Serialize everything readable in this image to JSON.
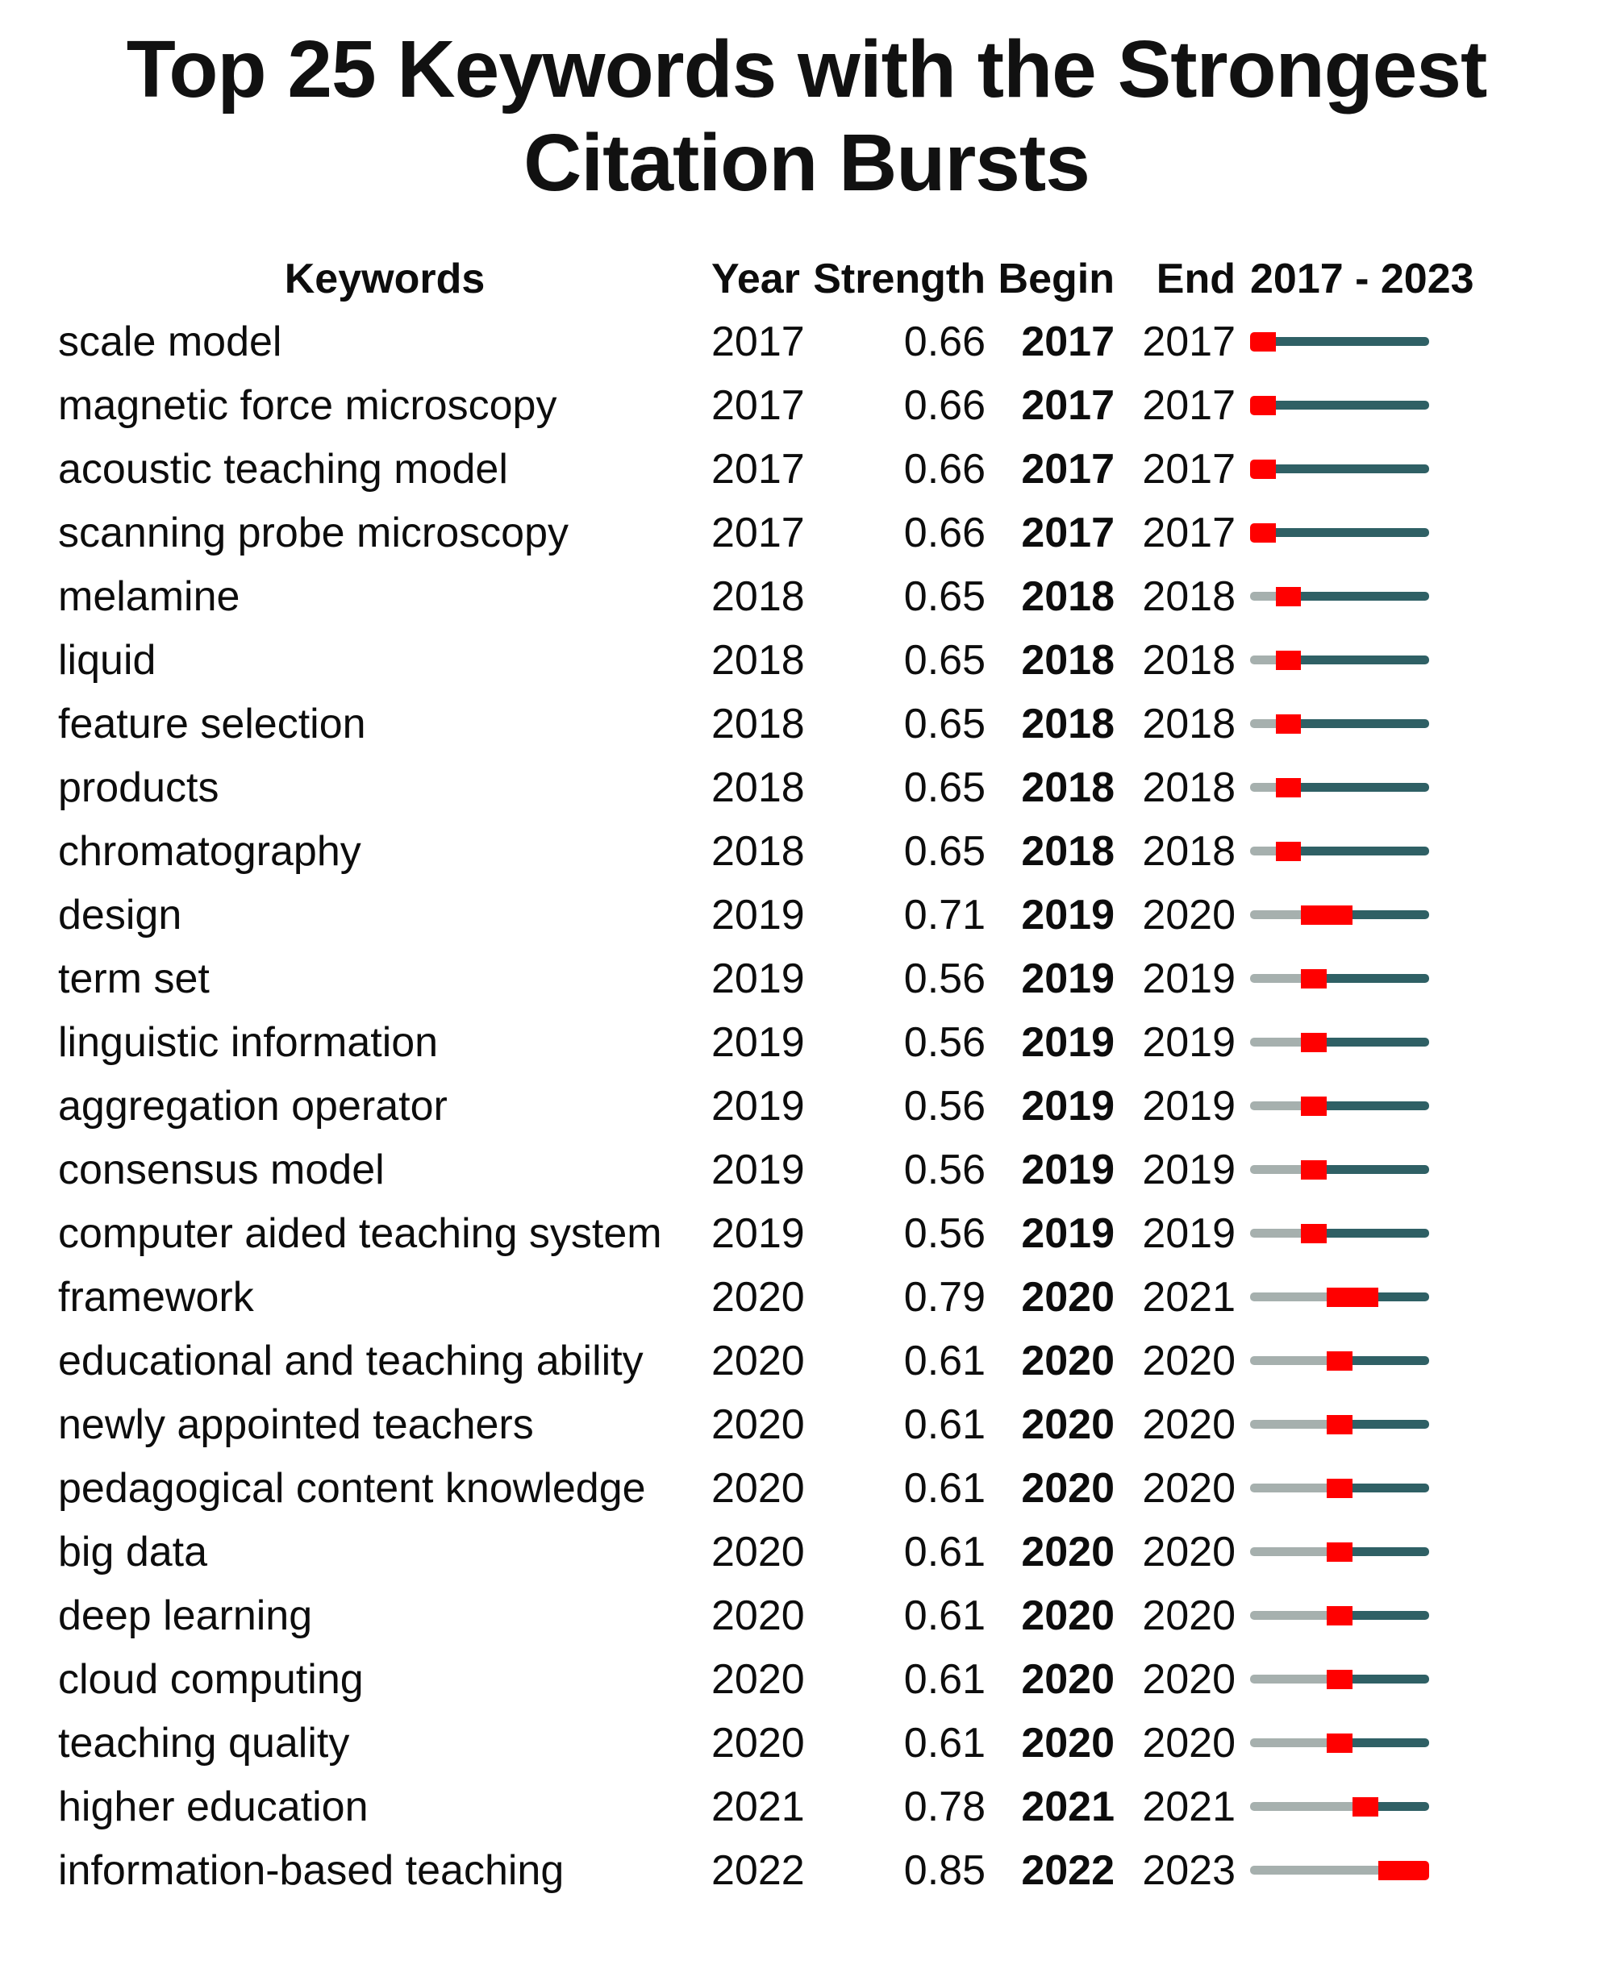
{
  "title": "Top 25 Keywords with the Strongest Citation Bursts",
  "colors": {
    "burst_red": "#ff0000",
    "pre_burst_gray": "#a6b0ae",
    "post_burst_teal": "#2f6065"
  },
  "chart_data": {
    "type": "table",
    "title": "Top 25 Keywords with the Strongest Citation Bursts",
    "columns": [
      "Keywords",
      "Year",
      "Strength",
      "Begin",
      "End",
      "2017 - 2023"
    ],
    "timeline_range": [
      2017,
      2023
    ],
    "rows": [
      {
        "keyword": "scale model",
        "year": 2017,
        "strength": 0.66,
        "begin": 2017,
        "end": 2017
      },
      {
        "keyword": "magnetic force microscopy",
        "year": 2017,
        "strength": 0.66,
        "begin": 2017,
        "end": 2017
      },
      {
        "keyword": "acoustic teaching model",
        "year": 2017,
        "strength": 0.66,
        "begin": 2017,
        "end": 2017
      },
      {
        "keyword": "scanning probe microscopy",
        "year": 2017,
        "strength": 0.66,
        "begin": 2017,
        "end": 2017
      },
      {
        "keyword": "melamine",
        "year": 2018,
        "strength": 0.65,
        "begin": 2018,
        "end": 2018
      },
      {
        "keyword": "liquid",
        "year": 2018,
        "strength": 0.65,
        "begin": 2018,
        "end": 2018
      },
      {
        "keyword": "feature selection",
        "year": 2018,
        "strength": 0.65,
        "begin": 2018,
        "end": 2018
      },
      {
        "keyword": "products",
        "year": 2018,
        "strength": 0.65,
        "begin": 2018,
        "end": 2018
      },
      {
        "keyword": "chromatography",
        "year": 2018,
        "strength": 0.65,
        "begin": 2018,
        "end": 2018
      },
      {
        "keyword": "design",
        "year": 2019,
        "strength": 0.71,
        "begin": 2019,
        "end": 2020
      },
      {
        "keyword": "term set",
        "year": 2019,
        "strength": 0.56,
        "begin": 2019,
        "end": 2019
      },
      {
        "keyword": "linguistic information",
        "year": 2019,
        "strength": 0.56,
        "begin": 2019,
        "end": 2019
      },
      {
        "keyword": "aggregation operator",
        "year": 2019,
        "strength": 0.56,
        "begin": 2019,
        "end": 2019
      },
      {
        "keyword": "consensus model",
        "year": 2019,
        "strength": 0.56,
        "begin": 2019,
        "end": 2019
      },
      {
        "keyword": "computer aided teaching system",
        "year": 2019,
        "strength": 0.56,
        "begin": 2019,
        "end": 2019
      },
      {
        "keyword": "framework",
        "year": 2020,
        "strength": 0.79,
        "begin": 2020,
        "end": 2021
      },
      {
        "keyword": "educational and teaching ability",
        "year": 2020,
        "strength": 0.61,
        "begin": 2020,
        "end": 2020
      },
      {
        "keyword": "newly appointed teachers",
        "year": 2020,
        "strength": 0.61,
        "begin": 2020,
        "end": 2020
      },
      {
        "keyword": "pedagogical content knowledge",
        "year": 2020,
        "strength": 0.61,
        "begin": 2020,
        "end": 2020
      },
      {
        "keyword": "big data",
        "year": 2020,
        "strength": 0.61,
        "begin": 2020,
        "end": 2020
      },
      {
        "keyword": "deep learning",
        "year": 2020,
        "strength": 0.61,
        "begin": 2020,
        "end": 2020
      },
      {
        "keyword": "cloud computing",
        "year": 2020,
        "strength": 0.61,
        "begin": 2020,
        "end": 2020
      },
      {
        "keyword": "teaching quality",
        "year": 2020,
        "strength": 0.61,
        "begin": 2020,
        "end": 2020
      },
      {
        "keyword": "higher education",
        "year": 2021,
        "strength": 0.78,
        "begin": 2021,
        "end": 2021
      },
      {
        "keyword": "information-based teaching",
        "year": 2022,
        "strength": 0.85,
        "begin": 2022,
        "end": 2023
      }
    ]
  }
}
